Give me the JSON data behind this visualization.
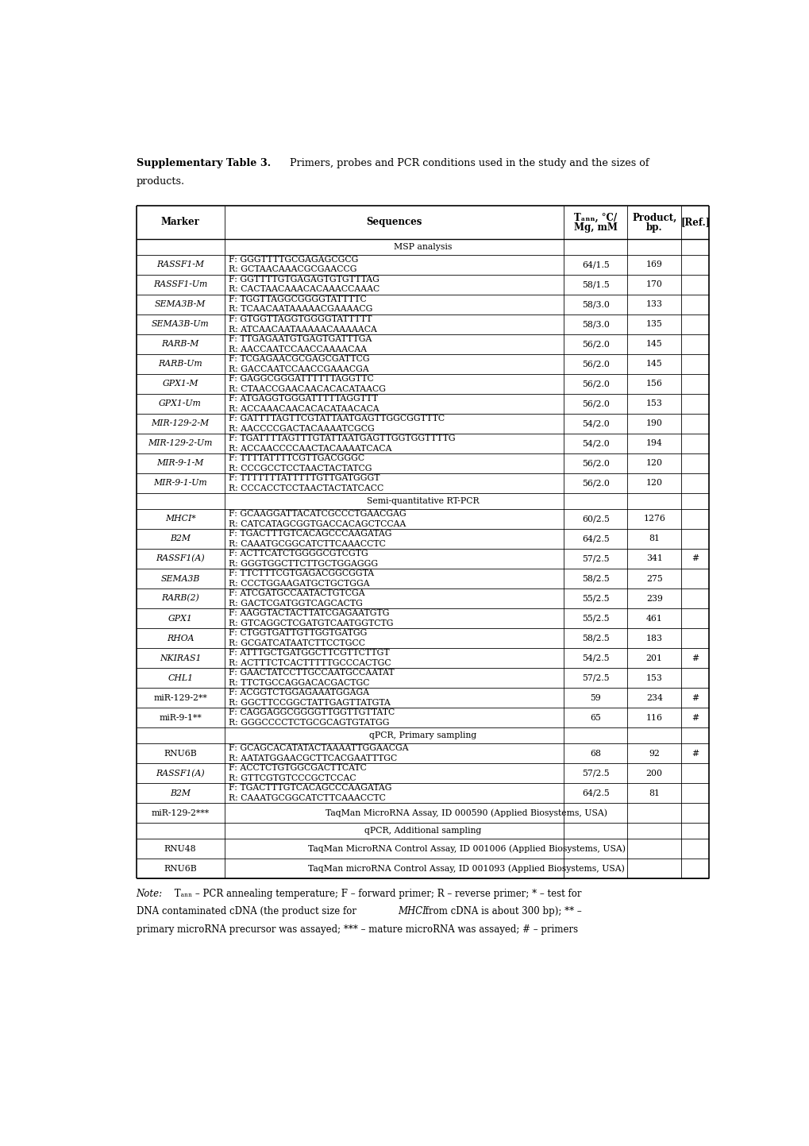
{
  "title_bold": "Supplementary Table 3.",
  "title_normal": " Primers, probes and PCR conditions used in the study and the sizes of",
  "title_line2": "products.",
  "col_headers_line1": [
    "Marker",
    "Sequences",
    "Tₐₙₙ, °C/",
    "Product,",
    "[Ref.]"
  ],
  "col_headers_line2": [
    "",
    "",
    "Mg, mM",
    "bp.",
    ""
  ],
  "section_labels": {
    "0": "MSP analysis",
    "12": "Semi-quantitative RT-PCR",
    "23": "qPCR, Primary sampling",
    "27": "qPCR, Additional sampling"
  },
  "rows": [
    {
      "marker": "RASSF1-M",
      "italic": true,
      "seq1": "F: GGGTTTTGCGAGAGCGCG",
      "seq2": "R: GCTAACAAACGCGAACCG",
      "temp": "64/1.5",
      "product": "169",
      "ref": ""
    },
    {
      "marker": "RASSF1-Um",
      "italic": true,
      "seq1": "F: GGTTTTGTGAGAGTGTGTTTAG",
      "seq2": "R: CACTAACAAACACAAACCAAAC",
      "temp": "58/1.5",
      "product": "170",
      "ref": ""
    },
    {
      "marker": "SEMA3B-M",
      "italic": true,
      "seq1": "F: TGGTTAGGCGGGGTATTTTC",
      "seq2": "R: TCAACAATAAAAACGAAAACG",
      "temp": "58/3.0",
      "product": "133",
      "ref": ""
    },
    {
      "marker": "SEMA3B-Um",
      "italic": true,
      "seq1": "F: GTGGTTAGGTGGGGTATTTTТ",
      "seq2": "R: ATCAACAATAAAAACAAAAACA",
      "temp": "58/3.0",
      "product": "135",
      "ref": ""
    },
    {
      "marker": "RARB-M",
      "italic": true,
      "seq1": "F: TTGAGAATGTGAGTGATTTGA",
      "seq2": "R: AACCAATCCAACCAAAACAA",
      "temp": "56/2.0",
      "product": "145",
      "ref": ""
    },
    {
      "marker": "RARB-Um",
      "italic": true,
      "seq1": "F: TCGAGAACGCGAGCGATTCG",
      "seq2": "R: GACCAATCCAACCGAAACGA",
      "temp": "56/2.0",
      "product": "145",
      "ref": ""
    },
    {
      "marker": "GPX1-M",
      "italic": true,
      "seq1": "F: GAGGCGGGATTTTTTAGGTTC",
      "seq2": "R: CTAACCGAACAACACACATAACG",
      "temp": "56/2.0",
      "product": "156",
      "ref": ""
    },
    {
      "marker": "GPX1-Um",
      "italic": true,
      "seq1": "F: ATGAGGTGGGATTTTTAGGTTT",
      "seq2": "R: ACCAAACAACACACATAACACA",
      "temp": "56/2.0",
      "product": "153",
      "ref": ""
    },
    {
      "marker": "MIR-129-2-M",
      "italic": true,
      "seq1": "F: GATTTTAGTTCGTATTAATGAGTTGGCGGTTTC",
      "seq2": "R: AACCCCGACTACAAAATCGCG",
      "temp": "54/2.0",
      "product": "190",
      "ref": ""
    },
    {
      "marker": "MIR-129-2-Um",
      "italic": true,
      "seq1": "F: TGATTTTAGTTTGTATTAATGAGTTGGTGGTTTTG",
      "seq2": "R: ACCAACCCCAACTACAAAATCACA",
      "temp": "54/2.0",
      "product": "194",
      "ref": ""
    },
    {
      "marker": "MIR-9-1-M",
      "italic": true,
      "seq1": "F: TTTTATТTTCGTTGACGGGC",
      "seq2": "R: CCCGCCTCCTAACTACTATCG",
      "temp": "56/2.0",
      "product": "120",
      "ref": ""
    },
    {
      "marker": "MIR-9-1-Um",
      "italic": true,
      "seq1": "F: ТTTTTTTATTTTTGTTGATGGGT",
      "seq2": "R: CCCACCTCCTAACTACTATCACC",
      "temp": "56/2.0",
      "product": "120",
      "ref": ""
    },
    {
      "marker": "MHCI*",
      "italic": true,
      "seq1": "F: GCAAGGATTACATCGCCCTGAACGAG",
      "seq2": "R: CATCATAGCGGTGACCACAGCTCCAA",
      "temp": "60/2.5",
      "product": "1276",
      "ref": ""
    },
    {
      "marker": "B2M",
      "italic": true,
      "seq1": "F: TGACTTTGTCACAGCCCAAGATAG",
      "seq2": "R: CAAATGCGGCATCTTCAAACCTC",
      "temp": "64/2.5",
      "product": "81",
      "ref": ""
    },
    {
      "marker": "RASSF1(A)",
      "italic": true,
      "seq1": "F: ACTTCATCTGGGGCGTCGTG",
      "seq2": "R: GGGTGGCTTCTTGCTGGAGGG",
      "temp": "57/2.5",
      "product": "341",
      "ref": "#"
    },
    {
      "marker": "SEMA3B",
      "italic": true,
      "seq1": "F: TTCTTTCGTGAGACGGCGGTA",
      "seq2": "R: CCCTGGAAGATGCTGCTGGA",
      "temp": "58/2.5",
      "product": "275",
      "ref": ""
    },
    {
      "marker": "RARB(2)",
      "italic": true,
      "seq1": "F: ATCGATGCCAATACTGTCGA",
      "seq2": "R: GACTCGATGGTCAGCACTG",
      "temp": "55/2.5",
      "product": "239",
      "ref": ""
    },
    {
      "marker": "GPX1",
      "italic": true,
      "seq1": "F: AAGGTACTACTTATCGAGAATGTG",
      "seq2": "R: GTCAGGCTCGATGTCAATGGTCTG",
      "temp": "55/2.5",
      "product": "461",
      "ref": ""
    },
    {
      "marker": "RHOA",
      "italic": true,
      "seq1": "F: CTGGTGATTGTTGGTGATGG",
      "seq2": "R: GCGATCATAATCTTCCTGCC",
      "temp": "58/2.5",
      "product": "183",
      "ref": ""
    },
    {
      "marker": "NKIRAS1",
      "italic": true,
      "seq1": "F: ATTTGCTGATGGCTTCGTTCTTGT",
      "seq2": "R: ACTTTCTCACTTTTTGCCCACTGC",
      "temp": "54/2.5",
      "product": "201",
      "ref": "#"
    },
    {
      "marker": "CHL1",
      "italic": true,
      "seq1": "F: GAACTATCCTTGCCAATGCCAATAT",
      "seq2": "R: TTCTGCCAGGACACGACTGC",
      "temp": "57/2.5",
      "product": "153",
      "ref": ""
    },
    {
      "marker": "miR-129-2**",
      "italic": false,
      "seq1": "F: ACGGTCTGGAGAAATGGAGA",
      "seq2": "R: GGCTTCCGGCTATTGAGTTATGTA",
      "temp": "59",
      "product": "234",
      "ref": "#"
    },
    {
      "marker": "miR-9-1**",
      "italic": false,
      "seq1": "F: CAGGAGGCGGGGTTGGTTGTTATC",
      "seq2": "R: GGGCCCCTCTGCGCAGTGTATGG",
      "temp": "65",
      "product": "116",
      "ref": "#"
    },
    {
      "marker": "RNU6B",
      "italic": false,
      "seq1": "F: GCAGCACATATACTAAAATTGGAACGA",
      "seq2": "R: AATATGGAACGCTTCACGAATTTGC",
      "temp": "68",
      "product": "92",
      "ref": "#"
    },
    {
      "marker": "RASSF1(A)",
      "italic": true,
      "seq1": "F: ACCTCTGTGGCGACTTCATC",
      "seq2": "R: GTTCGTGTCCCGCTCCAC",
      "temp": "57/2.5",
      "product": "200",
      "ref": ""
    },
    {
      "marker": "B2M",
      "italic": true,
      "seq1": "F: TGACTTTGTCACAGCCCAAGATAG",
      "seq2": "R: CAAATGCGGCATCTTCAAACCTC",
      "temp": "64/2.5",
      "product": "81",
      "ref": ""
    },
    {
      "marker": "miR-129-2***",
      "italic": false,
      "span": "TaqMan MicroRNA Assay, ID 000590 (Applied Biosystems, USA)"
    },
    {
      "marker": "RNU48",
      "italic": false,
      "span": "TaqMan MicroRNA Control Assay, ID 001006 (Applied Biosystems, USA)"
    },
    {
      "marker": "RNU6B",
      "italic": false,
      "span": "TaqMan microRNA Control Assay, ID 001093 (Applied Biosystems, USA)"
    }
  ],
  "note_parts": [
    {
      "text": "Note:",
      "style": "italic"
    },
    {
      "text": " T",
      "style": "normal"
    },
    {
      "text": "ann",
      "style": "subscript"
    },
    {
      "text": " – PCR annealing temperature; F – forward primer; R – reverse primer; * – test for",
      "style": "normal"
    },
    {
      "text": "\nDNA contaminated cDNA (the product size for ",
      "style": "normal"
    },
    {
      "text": "MHCI",
      "style": "italic"
    },
    {
      "text": " from cDNA is about 300 bp); ** –",
      "style": "normal"
    },
    {
      "text": "\nprimary microRNA precursor was assayed; *** – mature microRNA was assayed; # – primers",
      "style": "normal"
    }
  ],
  "bg_color": "#ffffff",
  "border_color": "#000000"
}
